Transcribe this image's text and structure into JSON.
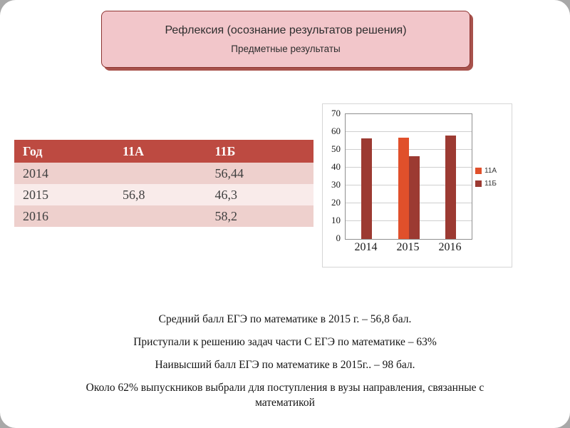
{
  "slide": {
    "title": "Рефлексия (осознание результатов решения)",
    "subtitle": "Предметные результаты"
  },
  "table": {
    "headers": [
      "Год",
      "11А",
      "11Б"
    ],
    "rows": [
      [
        "2014",
        "",
        "56,44"
      ],
      [
        "2015",
        "56,8",
        "46,3"
      ],
      [
        "2016",
        "",
        "58,2"
      ]
    ]
  },
  "chart_data": {
    "type": "bar",
    "categories": [
      "2014",
      "2015",
      "2016"
    ],
    "series": [
      {
        "name": "11А",
        "color": "#e0502b",
        "values": [
          null,
          56.8,
          null
        ]
      },
      {
        "name": "11Б",
        "color": "#9c3a32",
        "values": [
          56.44,
          46.3,
          58.2
        ]
      }
    ],
    "title": "",
    "xlabel": "",
    "ylabel": "",
    "ylim": [
      0,
      70
    ],
    "yticks": [
      0,
      10,
      20,
      30,
      40,
      50,
      60,
      70
    ],
    "grid": true,
    "legend_position": "right"
  },
  "notes": [
    "Средний балл ЕГЭ по математике в 2015 г. – 56,8 бал.",
    "Приступали к решению задач части С ЕГЭ по математике – 63%",
    "Наивысший балл ЕГЭ по математике в 2015г.. – 98 бал.",
    "Около  62% выпускников выбрали для поступления в вузы  направления, связанные с математикой"
  ]
}
